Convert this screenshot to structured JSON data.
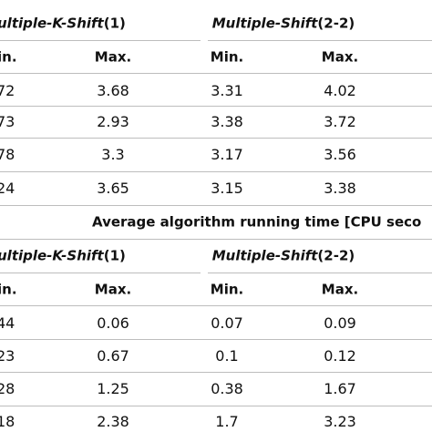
{
  "section1": {
    "groups": [
      {
        "name_italic": "ultiple-K-Shift",
        "name_suffix": "(1)"
      },
      {
        "name_italic": "Multiple-Shift",
        "name_suffix": "(2-2)"
      }
    ],
    "col_headers": [
      "in.",
      "Max.",
      "Min.",
      "Max."
    ],
    "rows": [
      [
        "72",
        "3.68",
        "3.31",
        "4.02"
      ],
      [
        "73",
        "2.93",
        "3.38",
        "3.72"
      ],
      [
        "78",
        "3.3",
        "3.17",
        "3.56"
      ],
      [
        "24",
        "3.65",
        "3.15",
        "3.38"
      ]
    ]
  },
  "section2": {
    "title": "Average algorithm running time [CPU seco",
    "groups": [
      {
        "name_italic": "ultiple-K-Shift",
        "name_suffix": "(1)"
      },
      {
        "name_italic": "Multiple-Shift",
        "name_suffix": "(2-2)"
      }
    ],
    "col_headers": [
      "in.",
      "Max.",
      "Min.",
      "Max."
    ],
    "rows": [
      [
        "44",
        "0.06",
        "0.07",
        "0.09"
      ],
      [
        "23",
        "0.67",
        "0.1",
        "0.12"
      ],
      [
        "28",
        "1.25",
        "0.38",
        "1.67"
      ],
      [
        "18",
        "2.38",
        "1.7",
        "3.23"
      ]
    ]
  }
}
